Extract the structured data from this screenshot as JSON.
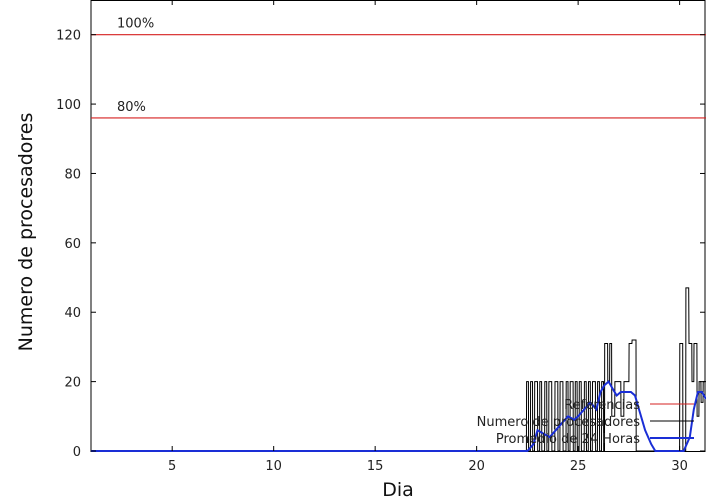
{
  "chart_data": {
    "type": "line",
    "xlabel": "Dia",
    "ylabel": "Numero de procesadores",
    "xlim": [
      1,
      31.3
    ],
    "ylim": [
      0,
      130
    ],
    "xticks": [
      5,
      10,
      15,
      20,
      25,
      30
    ],
    "yticks": [
      0,
      20,
      40,
      60,
      80,
      100,
      120
    ],
    "grid": false,
    "legend_position": "bottom-right",
    "reference_lines": [
      {
        "label": "100%",
        "y": 120,
        "color": "#d62020"
      },
      {
        "label": "80%",
        "y": 96,
        "color": "#d62020"
      }
    ],
    "series": [
      {
        "name": "Referencias",
        "color": "#d62020",
        "legend_only": true
      },
      {
        "name": "Numero de procesadores",
        "color": "#000000",
        "x": [
          1,
          22.45,
          22.46,
          22.55,
          22.56,
          22.65,
          22.66,
          22.75,
          22.76,
          22.85,
          22.86,
          23.0,
          23.01,
          23.1,
          23.11,
          23.2,
          23.21,
          23.35,
          23.36,
          23.45,
          23.46,
          23.55,
          23.56,
          23.7,
          23.71,
          23.85,
          23.86,
          24.0,
          24.01,
          24.1,
          24.11,
          24.25,
          24.26,
          24.4,
          24.41,
          24.5,
          24.51,
          24.6,
          24.61,
          24.75,
          24.76,
          24.85,
          24.86,
          24.95,
          24.96,
          25.05,
          25.06,
          25.15,
          25.16,
          25.3,
          25.31,
          25.4,
          25.41,
          25.5,
          25.51,
          25.6,
          25.61,
          25.7,
          25.71,
          25.85,
          25.86,
          25.95,
          25.96,
          26.05,
          26.06,
          26.15,
          26.16,
          26.25,
          26.26,
          26.3,
          26.31,
          26.45,
          26.46,
          26.55,
          26.56,
          26.65,
          26.66,
          26.8,
          26.81,
          27.1,
          27.11,
          27.25,
          27.26,
          27.5,
          27.51,
          27.65,
          27.66,
          27.85,
          27.86,
          28.0,
          28.01,
          28.15,
          28.16,
          28.7,
          28.71,
          29.0,
          29.01,
          29.3,
          29.31,
          30.0,
          30.01,
          30.15,
          30.16,
          30.3,
          30.31,
          30.45,
          30.46,
          30.6,
          30.61,
          30.7,
          30.71,
          30.85,
          30.86,
          30.95,
          30.96,
          31.05,
          31.06,
          31.15,
          31.16,
          31.3
        ],
        "y": [
          0,
          0,
          20,
          20,
          0,
          0,
          20,
          20,
          0,
          0,
          20,
          20,
          0,
          0,
          20,
          20,
          0,
          0,
          20,
          20,
          0,
          0,
          20,
          20,
          0,
          0,
          20,
          20,
          0,
          0,
          20,
          20,
          0,
          0,
          20,
          20,
          0,
          0,
          20,
          20,
          0,
          0,
          20,
          20,
          0,
          0,
          20,
          20,
          0,
          0,
          20,
          20,
          0,
          0,
          20,
          20,
          0,
          0,
          20,
          20,
          0,
          0,
          20,
          20,
          0,
          0,
          20,
          20,
          0,
          0,
          31,
          31,
          20,
          20,
          31,
          31,
          10,
          10,
          20,
          20,
          10,
          10,
          20,
          20,
          31,
          31,
          32,
          32,
          0,
          0,
          0,
          0,
          0,
          0,
          0,
          0,
          0,
          0,
          0,
          0,
          31,
          31,
          0,
          0,
          47,
          47,
          31,
          31,
          20,
          20,
          31,
          31,
          10,
          10,
          20,
          20,
          14,
          14,
          20,
          20
        ]
      },
      {
        "name": "Promedio de 24 Horas",
        "color": "#1a2ed6",
        "x": [
          1,
          22.3,
          22.5,
          22.8,
          23.0,
          23.3,
          23.6,
          23.9,
          24.2,
          24.5,
          24.8,
          25.0,
          25.3,
          25.6,
          25.9,
          26.1,
          26.3,
          26.5,
          26.7,
          26.9,
          27.1,
          27.3,
          27.6,
          27.8,
          28.0,
          28.3,
          28.6,
          28.8,
          29.0,
          29.3,
          29.6,
          29.9,
          30.2,
          30.5,
          30.7,
          30.9,
          31.1,
          31.3
        ],
        "y": [
          0,
          0,
          0,
          2,
          6,
          5,
          4,
          6,
          8,
          10,
          9,
          10,
          12,
          14,
          12,
          17,
          19,
          20,
          18,
          16,
          17,
          17,
          17,
          16,
          12,
          6,
          2,
          0,
          0,
          0,
          0,
          0,
          0,
          4,
          12,
          17,
          17,
          15
        ]
      }
    ]
  }
}
